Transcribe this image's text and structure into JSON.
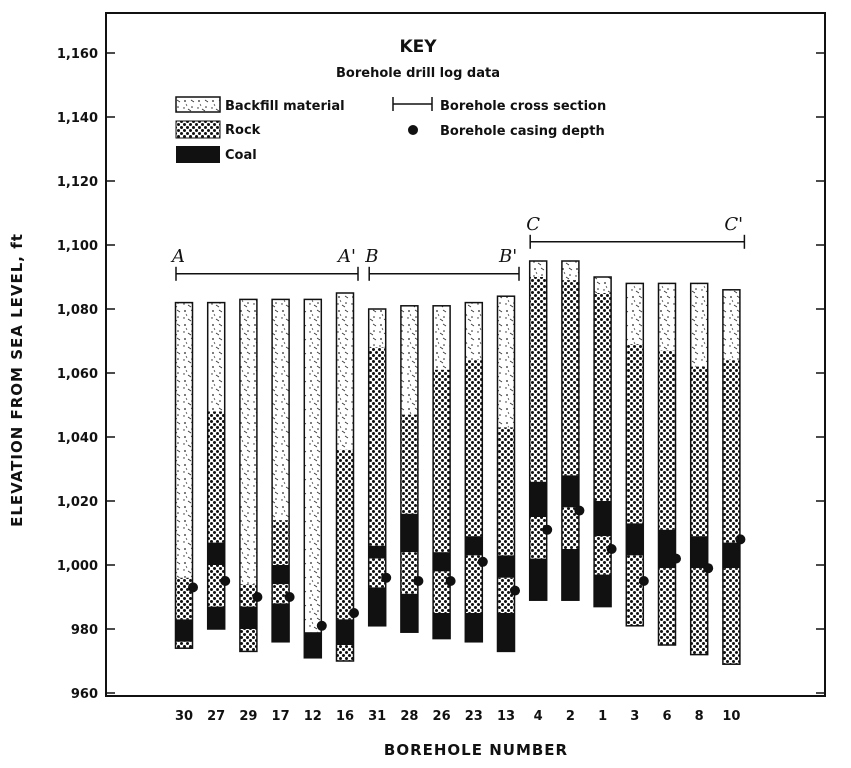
{
  "chart_data": {
    "type": "bar",
    "subtype": "stacked-range-columns",
    "xlabel": "BOREHOLE NUMBER",
    "ylabel": "ELEVATION FROM SEA LEVEL, ft",
    "ylim": [
      960,
      1170
    ],
    "y_ticks": [
      "960",
      "980",
      "1,000",
      "1,020",
      "1,040",
      "1,060",
      "1,080",
      "1,100",
      "1,120",
      "1,140",
      "1,160"
    ],
    "grid": false,
    "key": {
      "title": "KEY",
      "subtitle": "Borehole drill log data",
      "layers": [
        {
          "id": "backfill",
          "label": "Backfill material",
          "color": "#f3f3f3"
        },
        {
          "id": "rock",
          "label": "Rock",
          "color": "#777777"
        },
        {
          "id": "coal",
          "label": "Coal",
          "color": "#111111"
        }
      ],
      "cross_section_label": "Borehole cross section",
      "casing_label": "Borehole casing depth"
    },
    "cross_sections": [
      {
        "start_label": "A",
        "end_label": "A'",
        "from": "30",
        "to": "16"
      },
      {
        "start_label": "B",
        "end_label": "B'",
        "from": "31",
        "to": "13"
      },
      {
        "start_label": "C",
        "end_label": "C'",
        "from": "4",
        "to": "10"
      }
    ],
    "boreholes": [
      {
        "number": "30",
        "layers": [
          {
            "type": "backfill",
            "top": 1082,
            "bottom": 996
          },
          {
            "type": "rock",
            "top": 996,
            "bottom": 983
          },
          {
            "type": "coal",
            "top": 983,
            "bottom": 976
          },
          {
            "type": "rock",
            "top": 976,
            "bottom": 974
          }
        ],
        "casing": 993
      },
      {
        "number": "27",
        "layers": [
          {
            "type": "backfill",
            "top": 1082,
            "bottom": 1048
          },
          {
            "type": "rock",
            "top": 1048,
            "bottom": 1007
          },
          {
            "type": "coal",
            "top": 1007,
            "bottom": 1000
          },
          {
            "type": "rock",
            "top": 1000,
            "bottom": 987
          },
          {
            "type": "coal",
            "top": 987,
            "bottom": 980
          }
        ],
        "casing": 995
      },
      {
        "number": "29",
        "layers": [
          {
            "type": "backfill",
            "top": 1083,
            "bottom": 994
          },
          {
            "type": "rock",
            "top": 994,
            "bottom": 987
          },
          {
            "type": "coal",
            "top": 987,
            "bottom": 980
          },
          {
            "type": "rock",
            "top": 980,
            "bottom": 973
          }
        ],
        "casing": 990
      },
      {
        "number": "17",
        "layers": [
          {
            "type": "backfill",
            "top": 1083,
            "bottom": 1014
          },
          {
            "type": "rock",
            "top": 1014,
            "bottom": 1000
          },
          {
            "type": "coal",
            "top": 1000,
            "bottom": 994
          },
          {
            "type": "rock",
            "top": 994,
            "bottom": 988
          },
          {
            "type": "coal",
            "top": 988,
            "bottom": 976
          }
        ],
        "casing": 990
      },
      {
        "number": "12",
        "layers": [
          {
            "type": "backfill",
            "top": 1083,
            "bottom": 979
          },
          {
            "type": "coal",
            "top": 979,
            "bottom": 971
          }
        ],
        "casing": 981
      },
      {
        "number": "16",
        "layers": [
          {
            "type": "backfill",
            "top": 1085,
            "bottom": 1036
          },
          {
            "type": "rock",
            "top": 1036,
            "bottom": 983
          },
          {
            "type": "coal",
            "top": 983,
            "bottom": 975
          },
          {
            "type": "rock",
            "top": 975,
            "bottom": 970
          }
        ],
        "casing": 985
      },
      {
        "number": "31",
        "layers": [
          {
            "type": "backfill",
            "top": 1080,
            "bottom": 1068
          },
          {
            "type": "rock",
            "top": 1068,
            "bottom": 1006
          },
          {
            "type": "coal",
            "top": 1006,
            "bottom": 1002
          },
          {
            "type": "rock",
            "top": 1002,
            "bottom": 993
          },
          {
            "type": "coal",
            "top": 993,
            "bottom": 981
          }
        ],
        "casing": 996
      },
      {
        "number": "28",
        "layers": [
          {
            "type": "backfill",
            "top": 1081,
            "bottom": 1047
          },
          {
            "type": "rock",
            "top": 1047,
            "bottom": 1016
          },
          {
            "type": "coal",
            "top": 1016,
            "bottom": 1004
          },
          {
            "type": "rock",
            "top": 1004,
            "bottom": 991
          },
          {
            "type": "coal",
            "top": 991,
            "bottom": 979
          }
        ],
        "casing": 995
      },
      {
        "number": "26",
        "layers": [
          {
            "type": "backfill",
            "top": 1081,
            "bottom": 1061
          },
          {
            "type": "rock",
            "top": 1061,
            "bottom": 1004
          },
          {
            "type": "coal",
            "top": 1004,
            "bottom": 998
          },
          {
            "type": "rock",
            "top": 998,
            "bottom": 985
          },
          {
            "type": "coal",
            "top": 985,
            "bottom": 977
          }
        ],
        "casing": 995
      },
      {
        "number": "23",
        "layers": [
          {
            "type": "backfill",
            "top": 1082,
            "bottom": 1064
          },
          {
            "type": "rock",
            "top": 1064,
            "bottom": 1009
          },
          {
            "type": "coal",
            "top": 1009,
            "bottom": 1003
          },
          {
            "type": "rock",
            "top": 1003,
            "bottom": 985
          },
          {
            "type": "coal",
            "top": 985,
            "bottom": 976
          }
        ],
        "casing": 1001
      },
      {
        "number": "13",
        "layers": [
          {
            "type": "backfill",
            "top": 1084,
            "bottom": 1043
          },
          {
            "type": "rock",
            "top": 1043,
            "bottom": 1003
          },
          {
            "type": "coal",
            "top": 1003,
            "bottom": 996
          },
          {
            "type": "rock",
            "top": 996,
            "bottom": 985
          },
          {
            "type": "coal",
            "top": 985,
            "bottom": 973
          }
        ],
        "casing": 992
      },
      {
        "number": "4",
        "layers": [
          {
            "type": "backfill",
            "top": 1095,
            "bottom": 1090
          },
          {
            "type": "rock",
            "top": 1090,
            "bottom": 1026
          },
          {
            "type": "coal",
            "top": 1026,
            "bottom": 1015
          },
          {
            "type": "rock",
            "top": 1015,
            "bottom": 1002
          },
          {
            "type": "coal",
            "top": 1002,
            "bottom": 989
          }
        ],
        "casing": 1011
      },
      {
        "number": "2",
        "layers": [
          {
            "type": "backfill",
            "top": 1095,
            "bottom": 1089
          },
          {
            "type": "rock",
            "top": 1089,
            "bottom": 1028
          },
          {
            "type": "coal",
            "top": 1028,
            "bottom": 1018
          },
          {
            "type": "rock",
            "top": 1018,
            "bottom": 1005
          },
          {
            "type": "coal",
            "top": 1005,
            "bottom": 989
          }
        ],
        "casing": 1017
      },
      {
        "number": "1",
        "layers": [
          {
            "type": "backfill",
            "top": 1090,
            "bottom": 1085
          },
          {
            "type": "rock",
            "top": 1085,
            "bottom": 1020
          },
          {
            "type": "coal",
            "top": 1020,
            "bottom": 1009
          },
          {
            "type": "rock",
            "top": 1009,
            "bottom": 997
          },
          {
            "type": "coal",
            "top": 997,
            "bottom": 987
          }
        ],
        "casing": 1005
      },
      {
        "number": "3",
        "layers": [
          {
            "type": "backfill",
            "top": 1088,
            "bottom": 1069
          },
          {
            "type": "rock",
            "top": 1069,
            "bottom": 1013
          },
          {
            "type": "coal",
            "top": 1013,
            "bottom": 1003
          },
          {
            "type": "rock",
            "top": 1003,
            "bottom": 981
          }
        ],
        "casing": 995
      },
      {
        "number": "6",
        "layers": [
          {
            "type": "backfill",
            "top": 1088,
            "bottom": 1067
          },
          {
            "type": "rock",
            "top": 1067,
            "bottom": 1011
          },
          {
            "type": "coal",
            "top": 1011,
            "bottom": 999
          },
          {
            "type": "rock",
            "top": 999,
            "bottom": 975
          }
        ],
        "casing": 1002
      },
      {
        "number": "8",
        "layers": [
          {
            "type": "backfill",
            "top": 1088,
            "bottom": 1062
          },
          {
            "type": "rock",
            "top": 1062,
            "bottom": 1009
          },
          {
            "type": "coal",
            "top": 1009,
            "bottom": 999
          },
          {
            "type": "rock",
            "top": 999,
            "bottom": 972
          }
        ],
        "casing": 999
      },
      {
        "number": "10",
        "layers": [
          {
            "type": "backfill",
            "top": 1086,
            "bottom": 1064
          },
          {
            "type": "rock",
            "top": 1064,
            "bottom": 1007
          },
          {
            "type": "coal",
            "top": 1007,
            "bottom": 999
          },
          {
            "type": "rock",
            "top": 999,
            "bottom": 969
          }
        ],
        "casing": 1008
      }
    ]
  }
}
